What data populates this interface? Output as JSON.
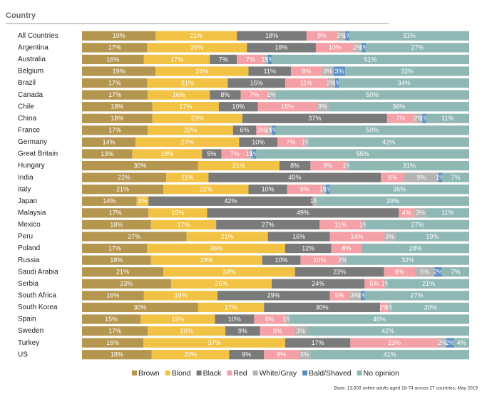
{
  "chart_data": {
    "type": "stacked-bar",
    "orientation": "horizontal",
    "title": "Country",
    "categories": [
      "All Countries",
      "Argentina",
      "Australia",
      "Belgium",
      "Brazil",
      "Canada",
      "Chile",
      "China",
      "France",
      "Germany",
      "Great Britain",
      "Hungary",
      "India",
      "Italy",
      "Japan",
      "Malaysia",
      "Mexico",
      "Peru",
      "Poland",
      "Russia",
      "Saudi Arabia",
      "Serbia",
      "South Africa",
      "South Korea",
      "Spain",
      "Sweden",
      "Turkey",
      "US"
    ],
    "series": [
      {
        "name": "Brown",
        "color": "#b5964f",
        "values": [
          19,
          17,
          16,
          19,
          17,
          17,
          18,
          18,
          17,
          14,
          13,
          30,
          22,
          21,
          14,
          17,
          18,
          27,
          17,
          18,
          21,
          23,
          16,
          30,
          15,
          17,
          16,
          18
        ],
        "value_labels": [
          "19%",
          "17%",
          "16%",
          "19%",
          "17%",
          "17%",
          "18%",
          "18%",
          "17%",
          "14%",
          "13%",
          "30%",
          "22%",
          "21%",
          "14%",
          "17%",
          "18%",
          "27%",
          "17%",
          "18%",
          "21%",
          "23%",
          "16%",
          "30%",
          "15%",
          "17%",
          "16%",
          "18%"
        ]
      },
      {
        "name": "Blond",
        "color": "#f2c244",
        "values": [
          21,
          26,
          17,
          24,
          21,
          16,
          17,
          23,
          22,
          27,
          18,
          21,
          11,
          22,
          3,
          15,
          17,
          21,
          36,
          29,
          34,
          26,
          19,
          17,
          19,
          20,
          37,
          20
        ],
        "value_labels": [
          "21%",
          "26%",
          "17%",
          "24%",
          "21%",
          "16%",
          "17%",
          "23%",
          "22%",
          "27%",
          "18%",
          "21%",
          "11%",
          "22%",
          "3%",
          "15%",
          "17%",
          "21%",
          "36%",
          "29%",
          "34%",
          "26%",
          "19%",
          "17%",
          "19%",
          "20%",
          "37%",
          "20%"
        ]
      },
      {
        "name": "Black",
        "color": "#7a7a7a",
        "values": [
          18,
          18,
          7,
          11,
          15,
          8,
          10,
          37,
          6,
          10,
          5,
          8,
          45,
          10,
          42,
          49,
          27,
          16,
          12,
          10,
          23,
          24,
          29,
          30,
          10,
          9,
          17,
          9
        ],
        "value_labels": [
          "18%",
          "18%",
          "7%",
          "11%",
          "15%",
          "8%",
          "10%",
          "37%",
          "6%",
          "10%",
          "5%",
          "8%",
          "45%",
          "10%",
          "42%",
          "49%",
          "27%",
          "16%",
          "12%",
          "10%",
          "23%",
          "24%",
          "29%",
          "30%",
          "10%",
          "9%",
          "17%",
          "9%"
        ]
      },
      {
        "name": "Red",
        "color": "#f4a0a6",
        "values": [
          8,
          10,
          7,
          8,
          11,
          7,
          15,
          7,
          3,
          7,
          7,
          9,
          6,
          9,
          0,
          4,
          11,
          14,
          8,
          10,
          8,
          5,
          5,
          2,
          8,
          9,
          23,
          9
        ],
        "value_labels": [
          "8%",
          "10%",
          "7%",
          "8%",
          "11%",
          "7%",
          "15%",
          "7%",
          "3%",
          "7%",
          "7%",
          "9%",
          "6%",
          "9%",
          null,
          "4%",
          "11%",
          "14%",
          "8%",
          "10%",
          "8%",
          "5%",
          "5%",
          "2%",
          "8%",
          "9%",
          "23%",
          "9%"
        ]
      },
      {
        "name": "White/Gray",
        "color": "#b3b3b3",
        "values": [
          2,
          2,
          1,
          3,
          2,
          2,
          3,
          2,
          1,
          1,
          1,
          1,
          9,
          1,
          1,
          3,
          1,
          3,
          0,
          2,
          5,
          1,
          3,
          1,
          1,
          3,
          2,
          3
        ],
        "value_labels": [
          "2%",
          "2%",
          "1%",
          "3%",
          "2%",
          "2%",
          "3%",
          "2%",
          "1%",
          "1%",
          "1%",
          "1%",
          "9%",
          "1%",
          "1%",
          "3%",
          "1%",
          "3%",
          null,
          "2%",
          "5%",
          "1%",
          "3%",
          "1%",
          "1%",
          "3%",
          "2%",
          "3%"
        ]
      },
      {
        "name": "Bald/Shaved",
        "color": "#5b8fc4",
        "values": [
          1,
          1,
          1,
          3,
          1,
          0,
          0,
          1,
          1,
          0,
          1,
          0,
          1,
          1,
          0,
          0,
          0,
          0,
          0,
          0,
          2,
          0,
          1,
          0,
          0,
          0,
          2,
          0
        ],
        "value_labels": [
          "1%",
          "1%",
          "1%",
          "3%",
          "1%",
          null,
          null,
          "1%",
          "1%",
          null,
          "1%",
          null,
          "1%",
          "1%",
          null,
          null,
          null,
          null,
          null,
          null,
          "2%",
          null,
          "1%",
          null,
          null,
          null,
          "2%",
          null
        ]
      },
      {
        "name": "No opinion",
        "color": "#8fb8b5",
        "values": [
          31,
          27,
          51,
          32,
          34,
          50,
          36,
          11,
          50,
          42,
          55,
          31,
          7,
          36,
          39,
          11,
          27,
          19,
          28,
          32,
          7,
          21,
          27,
          20,
          46,
          42,
          4,
          41
        ],
        "value_labels": [
          "31%",
          "27%",
          "51%",
          "32%",
          "34%",
          "50%",
          "36%",
          "11%",
          "50%",
          "42%",
          "55%",
          "31%",
          "7%",
          "36%",
          "39%",
          "11%",
          "27%",
          "19%",
          "28%",
          "32%",
          "7%",
          "21%",
          "27%",
          "20%",
          "46%",
          "42%",
          "4%",
          "41%"
        ]
      }
    ],
    "note": "Base: 13,503 online adults aged 18-74 across 27 countries, May 2019"
  }
}
